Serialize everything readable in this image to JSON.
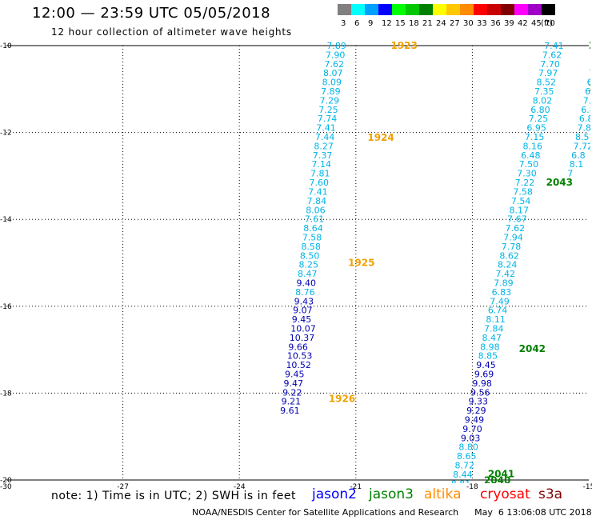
{
  "title": "12:00 — 23:59 UTC 05/05/2018",
  "subtitle": "12 hour collection of altimeter wave heights",
  "legend": {
    "unit": "(ft)",
    "bins": [
      {
        "label": "3",
        "color": "#808080"
      },
      {
        "label": "6",
        "color": "#00ffff"
      },
      {
        "label": "9",
        "color": "#00a0ff"
      },
      {
        "label": "12",
        "color": "#0000ff"
      },
      {
        "label": "15",
        "color": "#00ff00"
      },
      {
        "label": "18",
        "color": "#00c800"
      },
      {
        "label": "21",
        "color": "#008000"
      },
      {
        "label": "24",
        "color": "#ffff00"
      },
      {
        "label": "27",
        "color": "#ffc800"
      },
      {
        "label": "30",
        "color": "#ff8c00"
      },
      {
        "label": "33",
        "color": "#ff0000"
      },
      {
        "label": "36",
        "color": "#c80000"
      },
      {
        "label": "39",
        "color": "#800000"
      },
      {
        "label": "42",
        "color": "#ff00ff"
      },
      {
        "label": "45",
        "color": "#a000c8"
      },
      {
        "label": "70",
        "color": "#000000"
      }
    ]
  },
  "note": "note: 1) Time is in UTC; 2) SWH is in feet",
  "satellites": [
    {
      "name": "jason2",
      "color": "#0000ff"
    },
    {
      "name": "jason3",
      "color": "#008000"
    },
    {
      "name": "altika",
      "color": "#ff8c00"
    },
    {
      "name": "cryosat",
      "color": "#ff0000"
    },
    {
      "name": "s3a",
      "color": "#800000"
    }
  ],
  "footer": {
    "left": "NOAA/NESDIS Center for Satellite Applications and Research",
    "right": "May  6 13:06:08 UTC 2018"
  },
  "colors": {
    "cyan_label": "#00b4e6",
    "navy_label": "#0000b4",
    "orange_time": "#f0a000",
    "green_time": "#008000"
  },
  "chart_data": {
    "type": "scatter",
    "xlim": [
      -30,
      -15
    ],
    "ylim": [
      -20,
      -10
    ],
    "x_ticks": [
      -27,
      -24,
      -21,
      -18,
      -15
    ],
    "x_tick_labels": [
      "-27",
      "-24",
      "-21",
      "-18",
      "-15"
    ],
    "x_min_label": "-30",
    "y_ticks": [
      -10,
      -12,
      -14,
      -16,
      -18,
      -20
    ],
    "y_tick_labels": [
      "-10",
      "-12",
      "-14",
      "-16",
      "-18",
      "-20"
    ],
    "grid": true,
    "tracks": [
      {
        "points": [
          {
            "x": -21.75,
            "y": -10.0,
            "v": "7.89",
            "c": "cyan_label"
          },
          {
            "x": -21.78,
            "y": -10.21,
            "v": "7.90",
            "c": "cyan_label"
          },
          {
            "x": -21.81,
            "y": -10.42,
            "v": "7.62",
            "c": "cyan_label"
          },
          {
            "x": -21.84,
            "y": -10.63,
            "v": "8.07",
            "c": "cyan_label"
          },
          {
            "x": -21.87,
            "y": -10.84,
            "v": "8.09",
            "c": "cyan_label"
          },
          {
            "x": -21.9,
            "y": -11.05,
            "v": "7.89",
            "c": "cyan_label"
          },
          {
            "x": -21.93,
            "y": -11.26,
            "v": "7.29",
            "c": "cyan_label"
          },
          {
            "x": -21.96,
            "y": -11.47,
            "v": "7.25",
            "c": "cyan_label"
          },
          {
            "x": -21.99,
            "y": -11.68,
            "v": "7.74",
            "c": "cyan_label"
          },
          {
            "x": -22.02,
            "y": -11.89,
            "v": "7.41",
            "c": "cyan_label"
          },
          {
            "x": -22.05,
            "y": -12.1,
            "v": "7.44",
            "c": "cyan_label"
          },
          {
            "x": -22.08,
            "y": -12.31,
            "v": "8.27",
            "c": "cyan_label"
          },
          {
            "x": -22.11,
            "y": -12.52,
            "v": "7.37",
            "c": "cyan_label"
          },
          {
            "x": -22.14,
            "y": -12.73,
            "v": "7.14",
            "c": "cyan_label"
          },
          {
            "x": -22.17,
            "y": -12.94,
            "v": "7.81",
            "c": "cyan_label"
          },
          {
            "x": -22.2,
            "y": -13.15,
            "v": "7.60",
            "c": "cyan_label"
          },
          {
            "x": -22.23,
            "y": -13.36,
            "v": "7.41",
            "c": "cyan_label"
          },
          {
            "x": -22.26,
            "y": -13.57,
            "v": "7.84",
            "c": "cyan_label"
          },
          {
            "x": -22.29,
            "y": -13.78,
            "v": "8.06",
            "c": "cyan_label"
          },
          {
            "x": -22.32,
            "y": -13.99,
            "v": "7.61",
            "c": "cyan_label"
          },
          {
            "x": -22.35,
            "y": -14.2,
            "v": "8.64",
            "c": "cyan_label"
          },
          {
            "x": -22.38,
            "y": -14.41,
            "v": "7.58",
            "c": "cyan_label"
          },
          {
            "x": -22.41,
            "y": -14.62,
            "v": "8.58",
            "c": "cyan_label"
          },
          {
            "x": -22.44,
            "y": -14.83,
            "v": "8.50",
            "c": "cyan_label"
          },
          {
            "x": -22.47,
            "y": -15.04,
            "v": "8.25",
            "c": "cyan_label"
          },
          {
            "x": -22.5,
            "y": -15.25,
            "v": "8.47",
            "c": "cyan_label"
          },
          {
            "x": -22.53,
            "y": -15.46,
            "v": "9.40",
            "c": "navy_label"
          },
          {
            "x": -22.56,
            "y": -15.67,
            "v": "8.76",
            "c": "cyan_label"
          },
          {
            "x": -22.59,
            "y": -15.88,
            "v": "9.43",
            "c": "navy_label"
          },
          {
            "x": -22.62,
            "y": -16.09,
            "v": "9.07",
            "c": "navy_label"
          },
          {
            "x": -22.65,
            "y": -16.3,
            "v": "9.45",
            "c": "navy_label"
          },
          {
            "x": -22.68,
            "y": -16.51,
            "v": "10.07",
            "c": "navy_label"
          },
          {
            "x": -22.71,
            "y": -16.72,
            "v": "10.37",
            "c": "navy_label"
          },
          {
            "x": -22.74,
            "y": -16.93,
            "v": "9.66",
            "c": "navy_label"
          },
          {
            "x": -22.77,
            "y": -17.14,
            "v": "10.53",
            "c": "navy_label"
          },
          {
            "x": -22.8,
            "y": -17.35,
            "v": "10.52",
            "c": "navy_label"
          },
          {
            "x": -22.83,
            "y": -17.56,
            "v": "9.45",
            "c": "navy_label"
          },
          {
            "x": -22.86,
            "y": -17.77,
            "v": "9.47",
            "c": "navy_label"
          },
          {
            "x": -22.89,
            "y": -17.98,
            "v": "9.22",
            "c": "navy_label"
          },
          {
            "x": -22.92,
            "y": -18.19,
            "v": "9.21",
            "c": "navy_label"
          },
          {
            "x": -22.95,
            "y": -18.4,
            "v": "9.61",
            "c": "navy_label"
          }
        ],
        "times": [
          {
            "x": -20.1,
            "y": -10.0,
            "v": "1923",
            "c": "orange_time"
          },
          {
            "x": -20.7,
            "y": -12.12,
            "v": "1924",
            "c": "orange_time"
          },
          {
            "x": -21.2,
            "y": -15.0,
            "v": "1925",
            "c": "orange_time"
          },
          {
            "x": -21.7,
            "y": -18.13,
            "v": "1926",
            "c": "orange_time"
          }
        ]
      },
      {
        "points": [
          {
            "x": -16.15,
            "y": -10.0,
            "v": "7.41",
            "c": "cyan_label"
          },
          {
            "x": -16.2,
            "y": -10.21,
            "v": "7.62",
            "c": "cyan_label"
          },
          {
            "x": -16.25,
            "y": -10.42,
            "v": "7.70",
            "c": "cyan_label"
          },
          {
            "x": -16.3,
            "y": -10.63,
            "v": "7.97",
            "c": "cyan_label"
          },
          {
            "x": -16.35,
            "y": -10.84,
            "v": "8.52",
            "c": "cyan_label"
          },
          {
            "x": -16.4,
            "y": -11.05,
            "v": "7.35",
            "c": "cyan_label"
          },
          {
            "x": -16.45,
            "y": -11.26,
            "v": "8.02",
            "c": "cyan_label"
          },
          {
            "x": -16.5,
            "y": -11.47,
            "v": "6.80",
            "c": "cyan_label"
          },
          {
            "x": -16.55,
            "y": -11.68,
            "v": "7.25",
            "c": "cyan_label"
          },
          {
            "x": -16.6,
            "y": -11.89,
            "v": "6.95",
            "c": "cyan_label"
          },
          {
            "x": -16.65,
            "y": -12.1,
            "v": "7.15",
            "c": "cyan_label"
          },
          {
            "x": -16.7,
            "y": -12.31,
            "v": "8.16",
            "c": "cyan_label"
          },
          {
            "x": -16.75,
            "y": -12.52,
            "v": "6.48",
            "c": "cyan_label"
          },
          {
            "x": -16.8,
            "y": -12.73,
            "v": "7.50",
            "c": "cyan_label"
          },
          {
            "x": -16.85,
            "y": -12.94,
            "v": "7.30",
            "c": "cyan_label"
          },
          {
            "x": -16.9,
            "y": -13.15,
            "v": "7.22",
            "c": "cyan_label"
          },
          {
            "x": -16.95,
            "y": -13.36,
            "v": "7.58",
            "c": "cyan_label"
          },
          {
            "x": -17.0,
            "y": -13.57,
            "v": "7.54",
            "c": "cyan_label"
          },
          {
            "x": -17.05,
            "y": -13.78,
            "v": "8.17",
            "c": "cyan_label"
          },
          {
            "x": -17.1,
            "y": -13.99,
            "v": "7.67",
            "c": "cyan_label"
          },
          {
            "x": -17.15,
            "y": -14.2,
            "v": "7.62",
            "c": "cyan_label"
          },
          {
            "x": -17.2,
            "y": -14.41,
            "v": "7.94",
            "c": "cyan_label"
          },
          {
            "x": -17.25,
            "y": -14.62,
            "v": "7.78",
            "c": "cyan_label"
          },
          {
            "x": -17.3,
            "y": -14.83,
            "v": "8.62",
            "c": "cyan_label"
          },
          {
            "x": -17.35,
            "y": -15.04,
            "v": "8.24",
            "c": "cyan_label"
          },
          {
            "x": -17.4,
            "y": -15.25,
            "v": "7.42",
            "c": "cyan_label"
          },
          {
            "x": -17.45,
            "y": -15.46,
            "v": "7.89",
            "c": "cyan_label"
          },
          {
            "x": -17.5,
            "y": -15.67,
            "v": "6.83",
            "c": "cyan_label"
          },
          {
            "x": -17.55,
            "y": -15.88,
            "v": "7.49",
            "c": "cyan_label"
          },
          {
            "x": -17.6,
            "y": -16.09,
            "v": "6.74",
            "c": "cyan_label"
          },
          {
            "x": -17.65,
            "y": -16.3,
            "v": "8.11",
            "c": "cyan_label"
          },
          {
            "x": -17.7,
            "y": -16.51,
            "v": "7.84",
            "c": "cyan_label"
          },
          {
            "x": -17.75,
            "y": -16.72,
            "v": "8.47",
            "c": "cyan_label"
          },
          {
            "x": -17.8,
            "y": -16.93,
            "v": "8.98",
            "c": "cyan_label"
          },
          {
            "x": -17.85,
            "y": -17.14,
            "v": "8.85",
            "c": "cyan_label"
          },
          {
            "x": -17.9,
            "y": -17.35,
            "v": "9.45",
            "c": "navy_label"
          },
          {
            "x": -17.95,
            "y": -17.56,
            "v": "9.69",
            "c": "navy_label"
          },
          {
            "x": -18.0,
            "y": -17.77,
            "v": "9.98",
            "c": "navy_label"
          },
          {
            "x": -18.05,
            "y": -17.98,
            "v": "9.56",
            "c": "navy_label"
          },
          {
            "x": -18.1,
            "y": -18.19,
            "v": "9.33",
            "c": "navy_label"
          },
          {
            "x": -18.15,
            "y": -18.4,
            "v": "9.29",
            "c": "navy_label"
          },
          {
            "x": -18.2,
            "y": -18.61,
            "v": "9.49",
            "c": "navy_label"
          },
          {
            "x": -18.25,
            "y": -18.82,
            "v": "9.70",
            "c": "navy_label"
          },
          {
            "x": -18.3,
            "y": -19.03,
            "v": "9.03",
            "c": "navy_label"
          },
          {
            "x": -18.35,
            "y": -19.24,
            "v": "8.80",
            "c": "cyan_label"
          },
          {
            "x": -18.4,
            "y": -19.45,
            "v": "8.65",
            "c": "cyan_label"
          },
          {
            "x": -18.45,
            "y": -19.66,
            "v": "8.72",
            "c": "cyan_label"
          },
          {
            "x": -18.5,
            "y": -19.87,
            "v": "8.44",
            "c": "cyan_label"
          },
          {
            "x": -18.55,
            "y": -20.08,
            "v": "8.81",
            "c": "cyan_label"
          },
          {
            "x": -18.6,
            "y": -20.29,
            "v": "8.27",
            "c": "cyan_label"
          },
          {
            "x": -18.65,
            "y": -20.5,
            "v": "9.35",
            "c": "navy_label"
          }
        ],
        "times": [
          {
            "x": -16.1,
            "y": -13.15,
            "v": "2043",
            "c": "green_time"
          },
          {
            "x": -16.8,
            "y": -16.98,
            "v": "2042",
            "c": "green_time"
          },
          {
            "x": -17.6,
            "y": -19.86,
            "v": "2041",
            "c": "green_time"
          },
          {
            "x": -17.7,
            "y": -20.01,
            "v": "2040",
            "c": "green_time"
          }
        ]
      },
      {
        "points": [
          {
            "x": -14.85,
            "y": -10.0,
            "v": "7.83",
            "c": "cyan_label"
          },
          {
            "x": -14.9,
            "y": -10.21,
            "v": "7.26",
            "c": "cyan_label"
          },
          {
            "x": -14.95,
            "y": -10.42,
            "v": "7.60",
            "c": "cyan_label"
          },
          {
            "x": -15.0,
            "y": -10.63,
            "v": "7.46",
            "c": "cyan_label"
          },
          {
            "x": -15.05,
            "y": -10.84,
            "v": "6.97",
            "c": "cyan_label"
          },
          {
            "x": -15.1,
            "y": -11.05,
            "v": "6.82",
            "c": "cyan_label"
          },
          {
            "x": -15.15,
            "y": -11.26,
            "v": "7.65",
            "c": "cyan_label"
          },
          {
            "x": -15.2,
            "y": -11.47,
            "v": "6.89",
            "c": "cyan_label"
          },
          {
            "x": -15.25,
            "y": -11.68,
            "v": "6.87",
            "c": "cyan_label"
          },
          {
            "x": -15.3,
            "y": -11.89,
            "v": "7.80",
            "c": "cyan_label"
          },
          {
            "x": -15.35,
            "y": -12.1,
            "v": "8.57",
            "c": "cyan_label"
          },
          {
            "x": -15.4,
            "y": -12.31,
            "v": "7.72",
            "c": "cyan_label"
          },
          {
            "x": -15.45,
            "y": -12.52,
            "v": "6.8",
            "c": "cyan_label"
          },
          {
            "x": -15.5,
            "y": -12.73,
            "v": "8.1",
            "c": "cyan_label"
          },
          {
            "x": -15.55,
            "y": -12.94,
            "v": "7",
            "c": "cyan_label"
          }
        ],
        "times": [
          {
            "x": -15.0,
            "y": -10.0,
            "v": "20",
            "c": "green_time"
          },
          {
            "x": -15.0,
            "y": -10.98,
            "v": "20",
            "c": "green_time"
          }
        ]
      }
    ]
  }
}
